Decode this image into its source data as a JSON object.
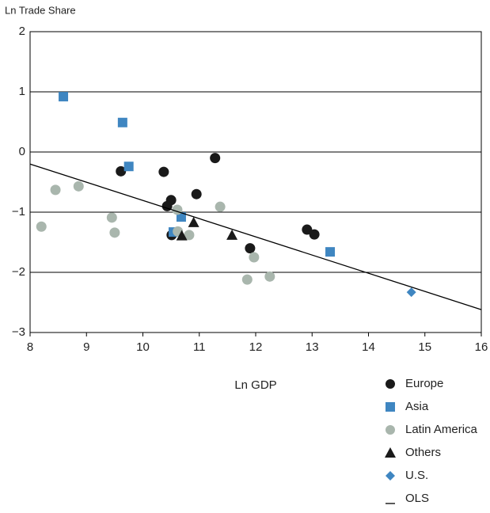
{
  "chart_data": {
    "type": "scatter",
    "y_label": "Ln Trade Share",
    "x_label": "Ln GDP",
    "xlim": [
      8,
      16
    ],
    "xticks": [
      8,
      9,
      10,
      11,
      12,
      13,
      14,
      15,
      16
    ],
    "ylim": [
      -3,
      2
    ],
    "yticks": [
      {
        "value": -3,
        "label": "−3"
      },
      {
        "value": -2,
        "label": "−2"
      },
      {
        "value": -1,
        "label": "−1"
      },
      0,
      1,
      2
    ],
    "grid": true,
    "series": [
      {
        "name": "Europe",
        "color": "#1a1a1a",
        "marker": "circle",
        "x": [
          9.61,
          10.37,
          10.5,
          10.43,
          10.95,
          11.28,
          10.51,
          11.9,
          12.91,
          13.04
        ],
        "values": [
          -0.32,
          -0.33,
          -0.8,
          -0.9,
          -0.7,
          -0.1,
          -1.38,
          -1.6,
          -1.29,
          -1.37
        ]
      },
      {
        "name": "Asia",
        "color": "#3f86c1",
        "marker": "square",
        "x": [
          8.59,
          9.64,
          9.75,
          10.68,
          10.54,
          13.32
        ],
        "values": [
          0.92,
          0.49,
          -0.24,
          -1.08,
          -1.33,
          -1.66
        ]
      },
      {
        "name": "Latin America",
        "color": "#a9b6ad",
        "marker": "circle",
        "x": [
          8.2,
          8.45,
          8.86,
          9.45,
          9.5,
          10.61,
          10.62,
          10.82,
          11.37,
          11.97,
          11.85,
          12.25
        ],
        "values": [
          -1.24,
          -0.63,
          -0.57,
          -1.09,
          -1.34,
          -0.96,
          -1.32,
          -1.38,
          -0.91,
          -1.75,
          -2.12,
          -2.07
        ]
      },
      {
        "name": "Others",
        "color": "#1a1a1a",
        "marker": "triangle",
        "x": [
          10.9,
          10.69,
          11.58
        ],
        "values": [
          -1.17,
          -1.39,
          -1.38
        ]
      },
      {
        "name": "U.S.",
        "color": "#3f86c1",
        "marker": "diamond",
        "x": [
          14.76
        ],
        "values": [
          -2.33
        ]
      },
      {
        "name": "OLS",
        "color": "#000000",
        "marker": "line",
        "x": [
          8,
          16
        ],
        "values": [
          -0.2,
          -2.62
        ]
      }
    ]
  }
}
